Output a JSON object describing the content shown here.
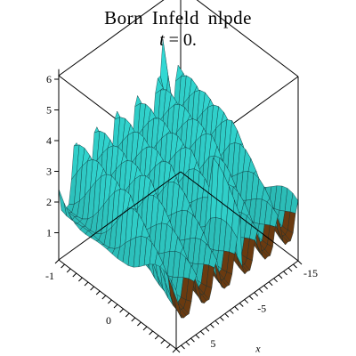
{
  "title_line1": "Born Infeld nlpde",
  "title_var": "t",
  "title_rest": " = 0.",
  "chart_data": {
    "type": "surface",
    "title": "Born Infeld nlpde",
    "subtitle": "t = 0.",
    "xlabel": "x",
    "ylabel": "",
    "zlabel": "",
    "x_ticks": [
      -15,
      -5,
      5
    ],
    "y_ticks": [
      -1,
      0
    ],
    "z_ticks": [
      1,
      2,
      3,
      4,
      5,
      6
    ],
    "xlim": [
      -15,
      10
    ],
    "ylim": [
      -1,
      1
    ],
    "zlim": [
      0,
      6
    ],
    "description_surface": "Periodic soliton ridges along x, amplitude ~3-4, with sharp spikes near y=-1",
    "colors": {
      "surface": "#33dcd6",
      "mesh": "#0b2a2e",
      "accent_spike": "#d03070",
      "accent_low": "#6a3a10",
      "accent_peak": "#e8c020"
    }
  }
}
